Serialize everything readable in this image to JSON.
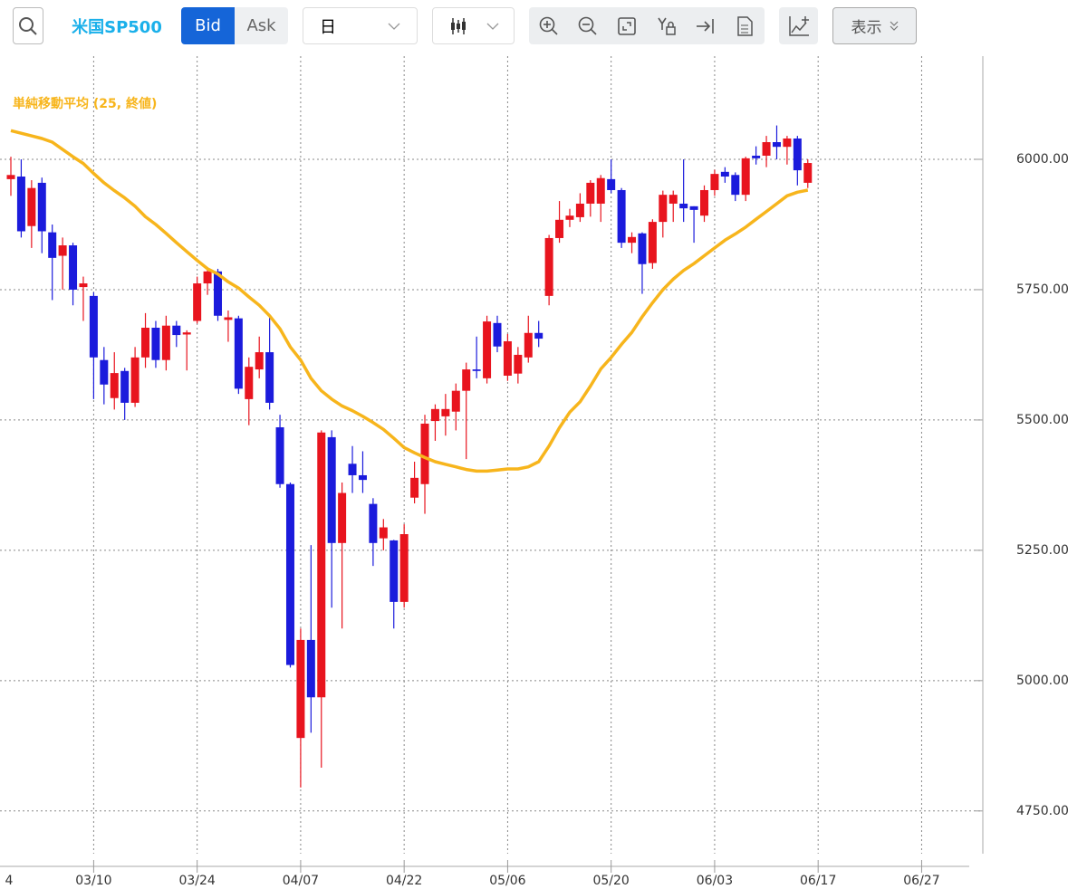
{
  "toolbar": {
    "symbol": "米国SP500",
    "bid": "Bid",
    "ask": "Ask",
    "period": "日",
    "view": "表示"
  },
  "chart_data": {
    "type": "candlestick",
    "open": [
      5962,
      5967,
      5872,
      5955,
      5860,
      5815,
      5835,
      5755,
      5738,
      5615,
      5542,
      5594,
      5533,
      5620,
      5677,
      5615,
      5681,
      5664,
      5690,
      5762,
      5785,
      5692,
      5695,
      5540,
      5597,
      5630,
      5486,
      5377,
      4890,
      5078,
      4968,
      5467,
      5264,
      5416,
      5394,
      5339,
      5273,
      5269,
      5151,
      5351,
      5377,
      5498,
      5507,
      5516,
      5556,
      5597,
      5580,
      5686,
      5585,
      5589,
      5620,
      5667,
      5738,
      5849,
      5884,
      5889,
      5915,
      5915,
      5962,
      5941,
      5840,
      5858,
      5801,
      5880,
      5915,
      5915,
      5910,
      5892,
      5941,
      5976,
      5970,
      5932,
      6007,
      6007,
      6033,
      6024,
      6040,
      5955
    ],
    "high": [
      6005,
      6000,
      5960,
      5965,
      5875,
      5850,
      5840,
      5775,
      5745,
      5640,
      5630,
      5600,
      5640,
      5705,
      5690,
      5700,
      5690,
      5672,
      5775,
      5790,
      5790,
      5710,
      5700,
      5620,
      5660,
      5700,
      5510,
      5380,
      5100,
      5260,
      5480,
      5480,
      5380,
      5450,
      5440,
      5350,
      5310,
      5270,
      5300,
      5420,
      5510,
      5530,
      5550,
      5570,
      5610,
      5660,
      5700,
      5700,
      5665,
      5640,
      5700,
      5690,
      5855,
      5920,
      5905,
      5935,
      5960,
      5970,
      6000,
      5945,
      5860,
      5860,
      5885,
      5940,
      5940,
      6000,
      5910,
      5950,
      5980,
      5985,
      5975,
      6005,
      6025,
      6045,
      6065,
      6045,
      6045,
      6000
    ],
    "low": [
      5930,
      5850,
      5830,
      5820,
      5730,
      5750,
      5720,
      5690,
      5540,
      5530,
      5520,
      5500,
      5525,
      5600,
      5600,
      5595,
      5640,
      5595,
      5685,
      5740,
      5690,
      5650,
      5550,
      5490,
      5580,
      5520,
      5370,
      5025,
      4795,
      4900,
      4833,
      5140,
      5100,
      5360,
      5360,
      5220,
      5250,
      5100,
      5140,
      5340,
      5320,
      5460,
      5470,
      5480,
      5425,
      5580,
      5570,
      5630,
      5575,
      5570,
      5610,
      5640,
      5720,
      5840,
      5870,
      5880,
      5890,
      5880,
      5935,
      5830,
      5820,
      5742,
      5790,
      5850,
      5880,
      5880,
      5840,
      5880,
      5930,
      5955,
      5920,
      5920,
      5990,
      5985,
      6000,
      5990,
      5950,
      5945
    ],
    "close": [
      5970,
      5862,
      5945,
      5862,
      5811,
      5835,
      5750,
      5762,
      5620,
      5568,
      5590,
      5533,
      5620,
      5677,
      5615,
      5681,
      5663,
      5668,
      5762,
      5785,
      5700,
      5697,
      5560,
      5602,
      5630,
      5533,
      5377,
      5030,
      5078,
      4968,
      5476,
      5264,
      5360,
      5394,
      5385,
      5264,
      5294,
      5151,
      5281,
      5389,
      5493,
      5521,
      5521,
      5556,
      5597,
      5594,
      5689,
      5641,
      5651,
      5625,
      5667,
      5656,
      5849,
      5884,
      5892,
      5915,
      5955,
      5964,
      5941,
      5840,
      5851,
      5799,
      5880,
      5932,
      5932,
      5906,
      5903,
      5941,
      5972,
      5967,
      5932,
      6002,
      6002,
      6033,
      6024,
      6040,
      5979,
      5993
    ],
    "up_color": "#e8141e",
    "down_color": "#1b1bdc",
    "series": [
      {
        "name": "単純移動平均 (25, 終値)",
        "color": "#f7b51c",
        "values": [
          6055,
          6050,
          6045,
          6040,
          6033,
          6019,
          6005,
          5992,
          5973,
          5955,
          5940,
          5926,
          5910,
          5890,
          5875,
          5858,
          5840,
          5823,
          5806,
          5790,
          5780,
          5765,
          5753,
          5736,
          5720,
          5700,
          5675,
          5640,
          5615,
          5580,
          5556,
          5540,
          5527,
          5518,
          5507,
          5495,
          5482,
          5465,
          5447,
          5437,
          5428,
          5420,
          5415,
          5410,
          5405,
          5402,
          5402,
          5404,
          5406,
          5406,
          5410,
          5420,
          5450,
          5485,
          5515,
          5535,
          5565,
          5598,
          5620,
          5645,
          5668,
          5698,
          5725,
          5750,
          5770,
          5787,
          5800,
          5815,
          5830,
          5845,
          5857,
          5870,
          5885,
          5900,
          5915,
          5930,
          5937,
          5941
        ]
      }
    ],
    "xlim": [
      -1.05,
      92.6
    ],
    "xticks": [
      {
        "value": -2,
        "label": "4"
      },
      {
        "value": 8,
        "label": "03/10"
      },
      {
        "value": 18,
        "label": "03/24"
      },
      {
        "value": 28,
        "label": "04/07"
      },
      {
        "value": 38,
        "label": "04/22"
      },
      {
        "value": 48,
        "label": "05/06"
      },
      {
        "value": 58,
        "label": "05/20"
      },
      {
        "value": 68,
        "label": "06/03"
      },
      {
        "value": 78,
        "label": "06/17"
      },
      {
        "value": 88,
        "label": "06/27"
      }
    ],
    "ylim": [
      4668,
      6198
    ],
    "yticks": [
      {
        "value": 4750,
        "label": "4750.00"
      },
      {
        "value": 5000,
        "label": "5000.00"
      },
      {
        "value": 5250,
        "label": "5250.00"
      },
      {
        "value": 5500,
        "label": "5500.00"
      },
      {
        "value": 5750,
        "label": "5750.00"
      },
      {
        "value": 6000,
        "label": "6000.00"
      }
    ],
    "grid": true
  }
}
